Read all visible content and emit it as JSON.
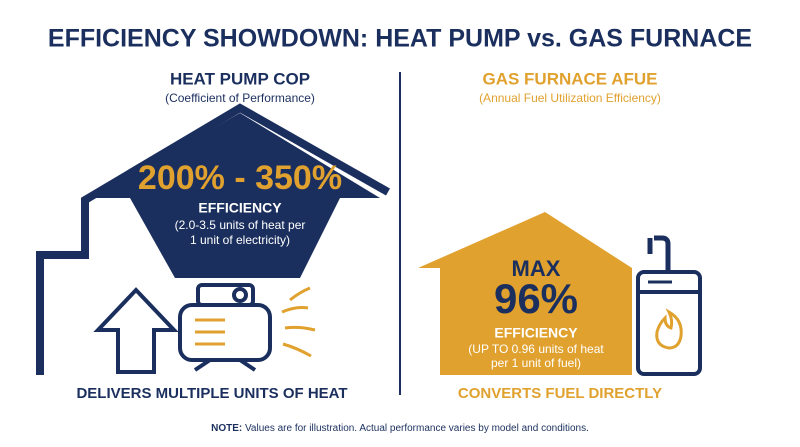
{
  "header": {
    "title": "EFFICIENCY SHOWDOWN: HEAT PUMP vs. GAS FURNACE"
  },
  "left": {
    "heading": "HEAT PUMP COP",
    "subheading": "(Coefficient of Performance)",
    "big_value": "200% - 350%",
    "label": "EFFICIENCY",
    "detail_lines": [
      "(2.0-3.5 units of heat per",
      "1 unit of electricity)"
    ],
    "footer": "DELIVERS MULTIPLE UNITS OF HEAT"
  },
  "right": {
    "heading": "GAS FURNACE AFUE",
    "subheading": "(Annual Fuel Utilization Efficiency)",
    "prefix": "MAX",
    "big_value": "96%",
    "label": "EFFICIENCY",
    "detail_lines": [
      "(UP TO 0.96 units of heat",
      "per 1 unit of fuel)"
    ],
    "footer": "CONVERTS FUEL DIRECTLY"
  },
  "note": {
    "label": "NOTE:",
    "text": "Values are for illustration. Actual performance varies by model and conditions."
  }
}
